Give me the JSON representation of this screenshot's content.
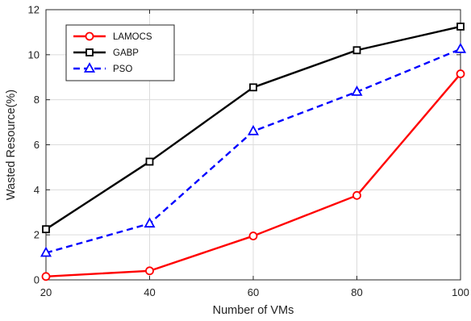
{
  "chart_data": {
    "type": "line",
    "title": "",
    "xlabel": "Number of VMs",
    "ylabel": "Wasted Resource(%)",
    "x": [
      20,
      40,
      60,
      80,
      100
    ],
    "xlim": [
      20,
      100
    ],
    "ylim": [
      0,
      12
    ],
    "xticks": [
      "20",
      "40",
      "60",
      "80",
      "100"
    ],
    "yticks": [
      "0",
      "2",
      "4",
      "6",
      "8",
      "10",
      "12"
    ],
    "grid": true,
    "legend_position": "top-left",
    "series": [
      {
        "name": "LAMOCS",
        "values": [
          0.15,
          0.4,
          1.95,
          3.75,
          9.15
        ],
        "color": "#ff0000",
        "marker": "circle",
        "linestyle": "solid"
      },
      {
        "name": "GABP",
        "values": [
          2.25,
          5.25,
          8.55,
          10.2,
          11.25
        ],
        "color": "#000000",
        "marker": "square",
        "linestyle": "solid"
      },
      {
        "name": "PSO",
        "values": [
          1.2,
          2.5,
          6.6,
          8.35,
          10.25
        ],
        "color": "#0000ff",
        "marker": "triangle",
        "linestyle": "dashed"
      }
    ]
  }
}
